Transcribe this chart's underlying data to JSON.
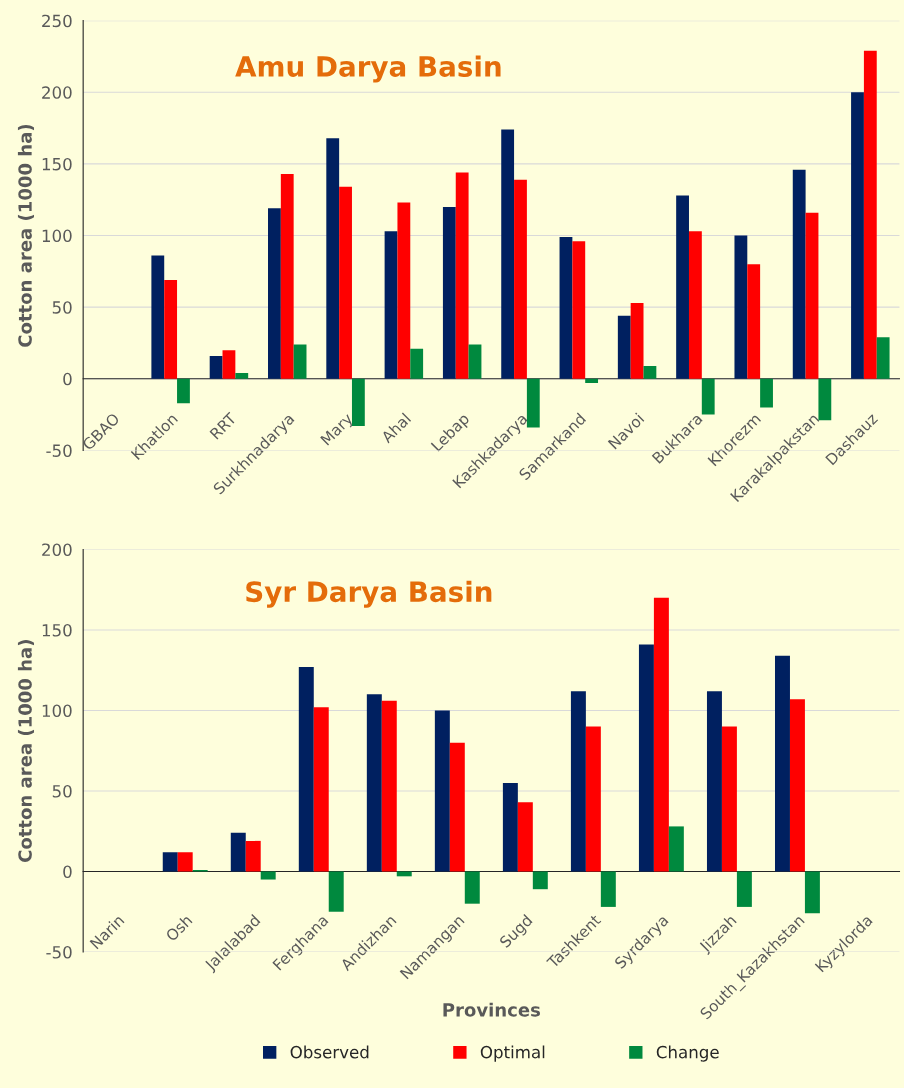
{
  "chart_data": [
    {
      "type": "bar",
      "title": "Amu Darya Basin",
      "ylabel": "Cotton area (1000 ha)",
      "categories": [
        "GBAO",
        "Khatlon",
        "RRT",
        "Surkhnadarya",
        "Mary",
        "Ahal",
        "Lebap",
        "Kashkadarya",
        "Samarkand",
        "Navoi",
        "Bukhara",
        "Khorezm",
        "Karakalpakstan",
        "Dashauz"
      ],
      "series": [
        {
          "color": "#002060",
          "values": [
            null,
            86,
            16,
            119,
            168,
            103,
            120,
            174,
            99,
            44,
            128,
            100,
            146,
            200
          ]
        },
        {
          "color": "#ff0000",
          "values": [
            null,
            69,
            20,
            143,
            134,
            123,
            144,
            139,
            96,
            53,
            103,
            80,
            116,
            229
          ]
        },
        {
          "color": "#00893e",
          "values": [
            null,
            -17,
            4,
            24,
            -33,
            21,
            24,
            -34,
            -3,
            9,
            -25,
            -20,
            -29,
            29
          ]
        }
      ],
      "ylim": [
        -50,
        250
      ],
      "yticks": [
        -50,
        0,
        50,
        100,
        150,
        200,
        250
      ],
      "grid": "y",
      "legend": false
    },
    {
      "type": "bar",
      "title": "Syr Darya Basin",
      "ylabel": "Cotton area (1000 ha)",
      "xlabel": "Provinces",
      "categories": [
        "Narin",
        "Osh",
        "Jalalabad",
        "Ferghana",
        "Andizhan",
        "Namangan",
        "Sugd",
        "Tashkent",
        "Syrdarya",
        "Jizzah",
        "South_Kazakhstan",
        "Kyzylorda"
      ],
      "series": [
        {
          "name": "Observed",
          "color": "#002060",
          "values": [
            null,
            12,
            24,
            127,
            110,
            100,
            55,
            112,
            141,
            112,
            134,
            null
          ]
        },
        {
          "name": "Optimal",
          "color": "#ff0000",
          "values": [
            null,
            12,
            19,
            102,
            106,
            80,
            43,
            90,
            170,
            90,
            107,
            null
          ]
        },
        {
          "name": "Change",
          "color": "#00893e",
          "values": [
            null,
            1,
            -5,
            -25,
            -3,
            -20,
            -11,
            -22,
            28,
            -22,
            -26,
            null
          ]
        }
      ],
      "ylim": [
        -50,
        200
      ],
      "yticks": [
        -50,
        0,
        50,
        100,
        150,
        200
      ],
      "grid": "y",
      "legend": "bottom"
    }
  ]
}
